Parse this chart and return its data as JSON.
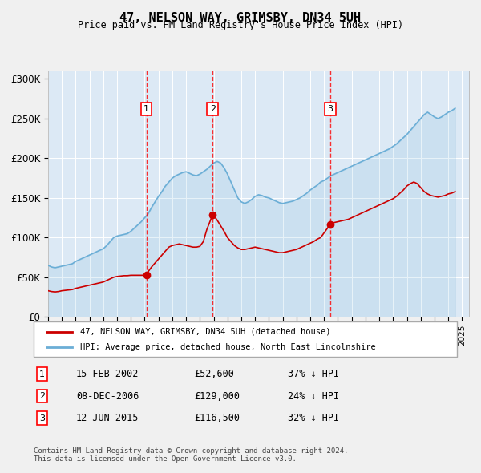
{
  "title": "47, NELSON WAY, GRIMSBY, DN34 5UH",
  "subtitle": "Price paid vs. HM Land Registry's House Price Index (HPI)",
  "ylabel": "",
  "xlabel": "",
  "ylim": [
    0,
    310000
  ],
  "yticks": [
    0,
    50000,
    100000,
    150000,
    200000,
    250000,
    300000
  ],
  "ytick_labels": [
    "£0",
    "£50K",
    "£100K",
    "£150K",
    "£200K",
    "£250K",
    "£300K"
  ],
  "xlim_start": 1995.0,
  "xlim_end": 2025.5,
  "background_color": "#dce9f5",
  "plot_bg_color": "#dce9f5",
  "grid_color": "#ffffff",
  "hpi_color": "#6baed6",
  "price_color": "#cc0000",
  "transactions": [
    {
      "num": 1,
      "date": "15-FEB-2002",
      "price": 52600,
      "year": 2002.12,
      "hpi_pct": 37
    },
    {
      "num": 2,
      "date": "08-DEC-2006",
      "price": 129000,
      "year": 2006.93,
      "hpi_pct": 24
    },
    {
      "num": 3,
      "date": "12-JUN-2015",
      "price": 116500,
      "year": 2015.44,
      "hpi_pct": 32
    }
  ],
  "legend_label_price": "47, NELSON WAY, GRIMSBY, DN34 5UH (detached house)",
  "legend_label_hpi": "HPI: Average price, detached house, North East Lincolnshire",
  "footer": "Contains HM Land Registry data © Crown copyright and database right 2024.\nThis data is licensed under the Open Government Licence v3.0.",
  "hpi_data_x": [
    1995.0,
    1995.25,
    1995.5,
    1995.75,
    1996.0,
    1996.25,
    1996.5,
    1996.75,
    1997.0,
    1997.25,
    1997.5,
    1997.75,
    1998.0,
    1998.25,
    1998.5,
    1998.75,
    1999.0,
    1999.25,
    1999.5,
    1999.75,
    2000.0,
    2000.25,
    2000.5,
    2000.75,
    2001.0,
    2001.25,
    2001.5,
    2001.75,
    2002.0,
    2002.25,
    2002.5,
    2002.75,
    2003.0,
    2003.25,
    2003.5,
    2003.75,
    2004.0,
    2004.25,
    2004.5,
    2004.75,
    2005.0,
    2005.25,
    2005.5,
    2005.75,
    2006.0,
    2006.25,
    2006.5,
    2006.75,
    2007.0,
    2007.25,
    2007.5,
    2007.75,
    2008.0,
    2008.25,
    2008.5,
    2008.75,
    2009.0,
    2009.25,
    2009.5,
    2009.75,
    2010.0,
    2010.25,
    2010.5,
    2010.75,
    2011.0,
    2011.25,
    2011.5,
    2011.75,
    2012.0,
    2012.25,
    2012.5,
    2012.75,
    2013.0,
    2013.25,
    2013.5,
    2013.75,
    2014.0,
    2014.25,
    2014.5,
    2014.75,
    2015.0,
    2015.25,
    2015.5,
    2015.75,
    2016.0,
    2016.25,
    2016.5,
    2016.75,
    2017.0,
    2017.25,
    2017.5,
    2017.75,
    2018.0,
    2018.25,
    2018.5,
    2018.75,
    2019.0,
    2019.25,
    2019.5,
    2019.75,
    2020.0,
    2020.25,
    2020.5,
    2020.75,
    2021.0,
    2021.25,
    2021.5,
    2021.75,
    2022.0,
    2022.25,
    2022.5,
    2022.75,
    2023.0,
    2023.25,
    2023.5,
    2023.75,
    2024.0,
    2024.25,
    2024.5
  ],
  "hpi_data_y": [
    65000,
    63000,
    62000,
    63000,
    64000,
    65000,
    66000,
    67000,
    70000,
    72000,
    74000,
    76000,
    78000,
    80000,
    82000,
    84000,
    86000,
    90000,
    95000,
    100000,
    102000,
    103000,
    104000,
    105000,
    108000,
    112000,
    116000,
    120000,
    125000,
    130000,
    138000,
    145000,
    152000,
    158000,
    165000,
    170000,
    175000,
    178000,
    180000,
    182000,
    183000,
    181000,
    179000,
    178000,
    180000,
    183000,
    186000,
    190000,
    194000,
    196000,
    194000,
    188000,
    180000,
    170000,
    160000,
    150000,
    145000,
    143000,
    145000,
    148000,
    152000,
    154000,
    153000,
    151000,
    150000,
    148000,
    146000,
    144000,
    143000,
    144000,
    145000,
    146000,
    148000,
    150000,
    153000,
    156000,
    160000,
    163000,
    166000,
    170000,
    172000,
    175000,
    178000,
    180000,
    182000,
    184000,
    186000,
    188000,
    190000,
    192000,
    194000,
    196000,
    198000,
    200000,
    202000,
    204000,
    206000,
    208000,
    210000,
    212000,
    215000,
    218000,
    222000,
    226000,
    230000,
    235000,
    240000,
    245000,
    250000,
    255000,
    258000,
    255000,
    252000,
    250000,
    252000,
    255000,
    258000,
    260000,
    263000
  ],
  "price_data_x": [
    1995.0,
    1995.25,
    1995.5,
    1995.75,
    1996.0,
    1996.25,
    1996.5,
    1996.75,
    1997.0,
    1997.25,
    1997.5,
    1997.75,
    1998.0,
    1998.25,
    1998.5,
    1998.75,
    1999.0,
    1999.25,
    1999.5,
    1999.75,
    2000.0,
    2000.25,
    2000.5,
    2000.75,
    2001.0,
    2001.25,
    2001.5,
    2001.75,
    2002.12,
    2002.12,
    2002.25,
    2002.5,
    2002.75,
    2003.0,
    2003.25,
    2003.5,
    2003.75,
    2004.0,
    2004.25,
    2004.5,
    2004.75,
    2005.0,
    2005.25,
    2005.5,
    2005.75,
    2006.0,
    2006.25,
    2006.5,
    2006.93,
    2006.93,
    2007.0,
    2007.25,
    2007.5,
    2007.75,
    2008.0,
    2008.25,
    2008.5,
    2008.75,
    2009.0,
    2009.25,
    2009.5,
    2009.75,
    2010.0,
    2010.25,
    2010.5,
    2010.75,
    2011.0,
    2011.25,
    2011.5,
    2011.75,
    2012.0,
    2012.25,
    2012.5,
    2012.75,
    2013.0,
    2013.25,
    2013.5,
    2013.75,
    2014.0,
    2014.25,
    2014.5,
    2014.75,
    2015.44,
    2015.44,
    2015.5,
    2015.75,
    2016.0,
    2016.25,
    2016.5,
    2016.75,
    2017.0,
    2017.25,
    2017.5,
    2017.75,
    2018.0,
    2018.25,
    2018.5,
    2018.75,
    2019.0,
    2019.25,
    2019.5,
    2019.75,
    2020.0,
    2020.25,
    2020.5,
    2020.75,
    2021.0,
    2021.25,
    2021.5,
    2021.75,
    2022.0,
    2022.25,
    2022.5,
    2022.75,
    2023.0,
    2023.25,
    2023.5,
    2023.75,
    2024.0,
    2024.25,
    2024.5
  ],
  "price_data_y": [
    33000,
    32000,
    31500,
    32000,
    33000,
    33500,
    34000,
    34500,
    36000,
    37000,
    38000,
    39000,
    40000,
    41000,
    42000,
    43000,
    44000,
    46000,
    48000,
    50000,
    51000,
    51500,
    52000,
    52000,
    52500,
    52500,
    52500,
    52500,
    52600,
    52600,
    57000,
    63000,
    68000,
    73000,
    78000,
    83000,
    88000,
    90000,
    91000,
    92000,
    91000,
    90000,
    89000,
    88000,
    88000,
    89000,
    95000,
    110000,
    129000,
    129000,
    128000,
    122000,
    115000,
    108000,
    100000,
    95000,
    90000,
    87000,
    85000,
    85000,
    86000,
    87000,
    88000,
    87000,
    86000,
    85000,
    84000,
    83000,
    82000,
    81000,
    81000,
    82000,
    83000,
    84000,
    85000,
    87000,
    89000,
    91000,
    93000,
    95000,
    98000,
    100000,
    116500,
    116500,
    118000,
    119000,
    120000,
    121000,
    122000,
    123000,
    125000,
    127000,
    129000,
    131000,
    133000,
    135000,
    137000,
    139000,
    141000,
    143000,
    145000,
    147000,
    149000,
    152000,
    156000,
    160000,
    165000,
    168000,
    170000,
    168000,
    163000,
    158000,
    155000,
    153000,
    152000,
    151000,
    152000,
    153000,
    155000,
    156000,
    158000
  ]
}
